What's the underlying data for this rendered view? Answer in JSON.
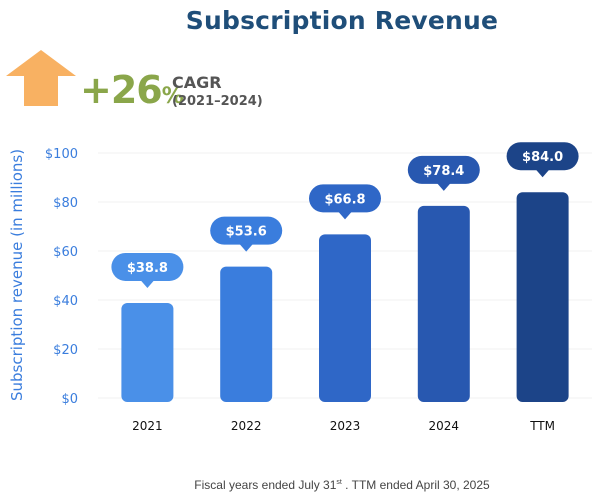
{
  "chart_data": {
    "type": "bar",
    "title": "Subscription Revenue",
    "categories": [
      "2021",
      "2022",
      "2023",
      "2024",
      "TTM"
    ],
    "values": [
      38.8,
      53.6,
      66.8,
      78.4,
      84.0
    ],
    "data_labels": [
      "$38.8",
      "$53.6",
      "$66.8",
      "$78.4",
      "$84.0"
    ],
    "ylabel": "Subscription revenue (in millions)",
    "xlabel": "",
    "ylim": [
      0,
      100
    ],
    "yticks": [
      0,
      20,
      40,
      60,
      80,
      100
    ],
    "ytick_labels": [
      "$0",
      "$20",
      "$40",
      "$60",
      "$80",
      "$100"
    ],
    "grid": true,
    "colors": [
      "#4a90e8",
      "#3a7ddd",
      "#2f67c7",
      "#2858b0",
      "#1c4488"
    ]
  },
  "cagr": {
    "value": "+26",
    "percent": "%",
    "label": "CAGR",
    "period": "(2021–2024)",
    "arrow_color": "#f8b162"
  },
  "footnote": {
    "main": "Fiscal years  ended July 31",
    "sup": "st",
    "rest": " .  TTM ended April 30, 2025"
  }
}
